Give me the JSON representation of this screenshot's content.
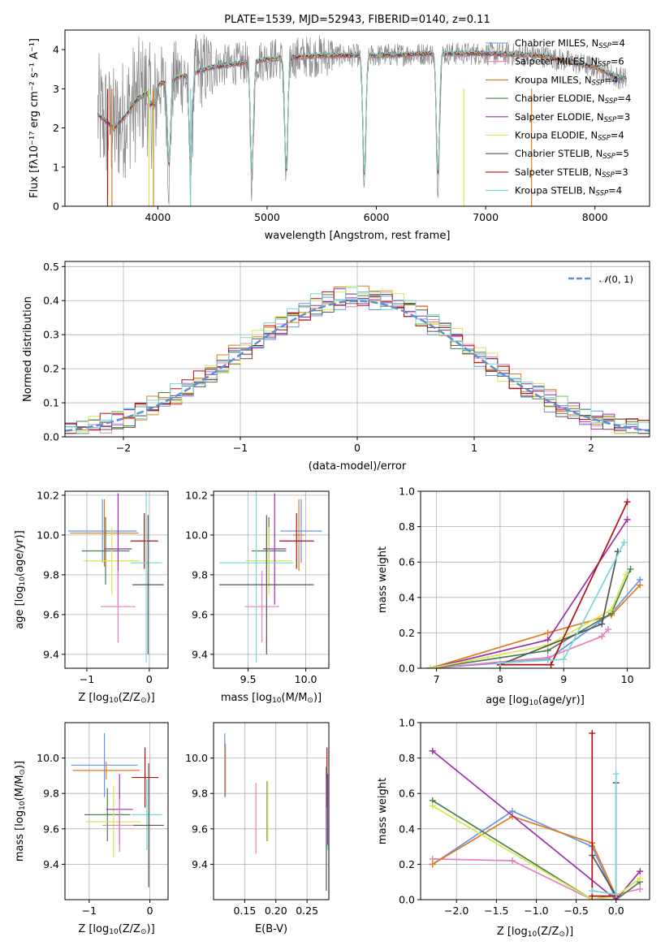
{
  "colors": {
    "Chabrier MILES": "#6495ed",
    "Salpeter MILES": "#e87fbd",
    "Kroupa MILES": "#e07b1a",
    "Chabrier ELODIE": "#4e7d4e",
    "Salpeter ELODIE": "#9b2fae",
    "Kroupa ELODIE": "#d4e84a",
    "Chabrier STELIB": "#555555",
    "Salpeter STELIB": "#b30f0f",
    "Kroupa STELIB": "#78d7d7",
    "data": "#888888",
    "normal": "#5b8fd6"
  },
  "chart_data": [
    {
      "id": "spectrum",
      "type": "line",
      "title": "PLATE=1539, MJD=52943, FIBERID=0140, z=0.11",
      "xlabel": "wavelength [Angstrom, rest frame]",
      "ylabel": "Flux [f$_\\lambda$10$^{-17}$ erg cm$^{-2}$ s$^{-1}$ A$^{-1}$]",
      "ylabel_display": "Flux [fλ10⁻¹⁷ erg cm⁻² s⁻¹ A⁻¹]",
      "xlim": [
        3150,
        8500
      ],
      "ylim": [
        0,
        4.5
      ],
      "xticks": [
        4000,
        5000,
        6000,
        7000,
        8000
      ],
      "yticks": [
        0,
        1,
        2,
        3,
        4
      ],
      "legend_loc": "upper right",
      "legend": [
        "Chabrier MILES, N_SSP=4",
        "Salpeter MILES, N_SSP=6",
        "Kroupa MILES, N_SSP=4",
        "Chabrier ELODIE, N_SSP=4",
        "Salpeter ELODIE, N_SSP=3",
        "Kroupa ELODIE, N_SSP=4",
        "Chabrier STELIB, N_SSP=5",
        "Salpeter STELIB, N_SSP=3",
        "Kroupa STELIB, N_SSP=4"
      ],
      "legend_parts": [
        [
          "Chabrier MILES, N",
          "SSP",
          "=4"
        ],
        [
          "Salpeter MILES, N",
          "SSP",
          "=6"
        ],
        [
          "Kroupa MILES, N",
          "SSP",
          "=4"
        ],
        [
          "Chabrier ELODIE, N",
          "SSP",
          "=4"
        ],
        [
          "Salpeter ELODIE, N",
          "SSP",
          "=3"
        ],
        [
          "Kroupa ELODIE, N",
          "SSP",
          "=4"
        ],
        [
          "Chabrier STELIB, N",
          "SSP",
          "=5"
        ],
        [
          "Salpeter STELIB, N",
          "SSP",
          "=3"
        ],
        [
          "Kroupa STELIB, N",
          "SSP",
          "=4"
        ]
      ],
      "continuum": {
        "x": [
          3450,
          3600,
          3700,
          3800,
          3900,
          4000,
          4200,
          4500,
          5000,
          5500,
          6000,
          6500,
          7000,
          7500,
          8000,
          8200,
          8290
        ],
        "y": [
          2.35,
          2.0,
          2.3,
          2.7,
          2.9,
          3.1,
          3.3,
          3.55,
          3.75,
          3.85,
          3.85,
          3.9,
          3.9,
          3.85,
          3.55,
          3.3,
          3.25
        ]
      },
      "model_range": [
        3450,
        8290
      ],
      "absorption": [
        [
          3934,
          0.4
        ],
        [
          3969,
          0.5
        ],
        [
          4102,
          2.4
        ],
        [
          4300,
          2.5
        ],
        [
          4861,
          3.1
        ],
        [
          5175,
          3.2
        ],
        [
          5890,
          3.4
        ],
        [
          6563,
          3.4
        ]
      ],
      "spikes": [
        {
          "x": 3540,
          "c": "Salpeter STELIB"
        },
        {
          "x": 3580,
          "c": "Kroupa MILES"
        },
        {
          "x": 3920,
          "c": "Kroupa ELODIE"
        },
        {
          "x": 3960,
          "c": "Kroupa MILES"
        },
        {
          "x": 4300,
          "c": "Kroupa STELIB"
        },
        {
          "x": 6800,
          "c": "Kroupa ELODIE"
        },
        {
          "x": 7420,
          "c": "Kroupa MILES"
        }
      ]
    },
    {
      "id": "residuals",
      "type": "histogram",
      "xlabel": "(data-model)/error",
      "ylabel": "Normed distribution",
      "xlim": [
        -2.5,
        2.5
      ],
      "ylim": [
        0,
        0.515
      ],
      "xticks": [
        -2,
        -1,
        0,
        1,
        2
      ],
      "xtick_labels": [
        "−2",
        "−1",
        "0",
        "1",
        "2"
      ],
      "yticks": [
        0,
        0.1,
        0.2,
        0.3,
        0.4,
        0.5
      ],
      "ytick_labels": [
        "0.0",
        "0.1",
        "0.2",
        "0.3",
        "0.4",
        "0.5"
      ],
      "bin_width": 0.1,
      "legend": [
        "𝒩(0, 1)"
      ],
      "legend_parts": [
        [
          "𝒩",
          "(0, 1)"
        ]
      ],
      "series": [
        {
          "name": "Chabrier MILES",
          "color": "Chabrier MILES",
          "jitter": 0.002
        },
        {
          "name": "Salpeter MILES",
          "color": "Salpeter MILES",
          "jitter": 0.021
        },
        {
          "name": "Kroupa MILES",
          "color": "Kroupa MILES",
          "jitter": 0.037
        },
        {
          "name": "Chabrier ELODIE",
          "color": "Chabrier ELODIE",
          "jitter": 0.053
        },
        {
          "name": "Salpeter ELODIE",
          "color": "Salpeter ELODIE",
          "jitter": 0.071
        },
        {
          "name": "Kroupa ELODIE",
          "color": "Kroupa ELODIE",
          "jitter": 0.089
        },
        {
          "name": "Chabrier STELIB",
          "color": "Chabrier STELIB",
          "jitter": 0.103
        },
        {
          "name": "Salpeter STELIB",
          "color": "Salpeter STELIB",
          "jitter": 0.127
        },
        {
          "name": "Kroupa STELIB",
          "color": "Kroupa STELIB",
          "jitter": 0.149
        }
      ]
    },
    {
      "id": "age_vs_Z",
      "type": "errorbar",
      "xlabel": "Z [log$_{10}$($Z/Z_\\odot$)]",
      "ylabel": "age  [log$_{10}$($age/yr$)]",
      "xlabel_parts": [
        "Z [log",
        "10",
        "(Z/Z",
        "⊙",
        ")]"
      ],
      "ylabel_parts": [
        "age  [log",
        "10",
        "(age/yr)]"
      ],
      "xlim": [
        -1.35,
        0.3
      ],
      "ylim": [
        9.33,
        10.22
      ],
      "xticks": [
        -1,
        0
      ],
      "xtick_labels": [
        "−1",
        "0"
      ],
      "yticks": [
        9.4,
        9.6,
        9.8,
        10.0,
        10.2
      ],
      "ytick_labels": [
        "9.4",
        "9.6",
        "9.8",
        "10.0",
        "10.2"
      ],
      "points": [
        {
          "c": "Chabrier MILES",
          "x": -0.75,
          "y": 10.02,
          "xerr": 0.55,
          "yerr": 0.16
        },
        {
          "c": "Kroupa MILES",
          "x": -0.72,
          "y": 10.01,
          "xerr": 0.55,
          "yerr": 0.17
        },
        {
          "c": "Chabrier ELODIE",
          "x": -0.7,
          "y": 9.92,
          "xerr": 0.38,
          "yerr": 0.17
        },
        {
          "c": "Kroupa ELODIE",
          "x": -0.6,
          "y": 9.87,
          "xerr": 0.45,
          "yerr": 0.17
        },
        {
          "c": "Salpeter ELODIE",
          "x": -0.5,
          "y": 9.93,
          "xerr": 0.22,
          "yerr": 0.28
        },
        {
          "c": "Salpeter MILES",
          "x": -0.5,
          "y": 9.64,
          "xerr": 0.28,
          "yerr": 0.18
        },
        {
          "c": "Salpeter STELIB",
          "x": -0.08,
          "y": 9.97,
          "xerr": 0.22,
          "yerr": 0.14
        },
        {
          "c": "Kroupa STELIB",
          "x": -0.05,
          "y": 9.86,
          "xerr": 0.25,
          "yerr": 0.5
        },
        {
          "c": "Chabrier STELIB",
          "x": -0.02,
          "y": 9.75,
          "xerr": 0.25,
          "yerr": 0.35
        }
      ]
    },
    {
      "id": "age_vs_mass",
      "type": "errorbar",
      "xlabel": "mass [log$_{10}$($M/M_\\odot$)]",
      "xlabel_parts": [
        "mass [log",
        "10",
        "(M/M",
        "⊙",
        ")]"
      ],
      "xlim": [
        9.2,
        10.2
      ],
      "ylim": [
        9.33,
        10.22
      ],
      "xticks": [
        9.5,
        10.0
      ],
      "xtick_labels": [
        "9.5",
        "10.0"
      ],
      "yticks": [
        9.4,
        9.6,
        9.8,
        10.0,
        10.2
      ],
      "ytick_labels": [
        "9.4",
        "9.6",
        "9.8",
        "10.0",
        "10.2"
      ],
      "points": [
        {
          "c": "Chabrier MILES",
          "x": 9.96,
          "y": 10.02,
          "xerr": 0.18,
          "yerr": 0.16
        },
        {
          "c": "Kroupa MILES",
          "x": 9.94,
          "y": 10.0,
          "xerr": 0.05,
          "yerr": 0.18
        },
        {
          "c": "Chabrier ELODIE",
          "x": 9.68,
          "y": 9.92,
          "xerr": 0.15,
          "yerr": 0.17
        },
        {
          "c": "Kroupa ELODIE",
          "x": 9.68,
          "y": 9.87,
          "xerr": 0.2,
          "yerr": 0.17
        },
        {
          "c": "Salpeter ELODIE",
          "x": 9.73,
          "y": 9.93,
          "xerr": 0.1,
          "yerr": 0.28
        },
        {
          "c": "Salpeter MILES",
          "x": 9.62,
          "y": 9.64,
          "xerr": 0.15,
          "yerr": 0.18
        },
        {
          "c": "Salpeter STELIB",
          "x": 9.92,
          "y": 9.97,
          "xerr": 0.15,
          "yerr": 0.14
        },
        {
          "c": "Kroupa STELIB",
          "x": 9.57,
          "y": 9.86,
          "xerr": 0.32,
          "yerr": 0.5
        },
        {
          "c": "Chabrier STELIB",
          "x": 9.66,
          "y": 9.75,
          "xerr": 0.41,
          "yerr": 0.35
        }
      ]
    },
    {
      "id": "weight_vs_age",
      "type": "line",
      "xlabel": "age  [log$_{10}$($age/yr$)]",
      "ylabel": "mass weight",
      "xlabel_parts": [
        "age  [log",
        "10",
        "(age/yr)]"
      ],
      "xlim": [
        6.75,
        10.35
      ],
      "ylim": [
        0,
        1.0
      ],
      "xticks": [
        7,
        8,
        9,
        10
      ],
      "xtick_labels": [
        "7",
        "8",
        "9",
        "10"
      ],
      "yticks": [
        0,
        0.2,
        0.4,
        0.6,
        0.8,
        1.0
      ],
      "ytick_labels": [
        "0.0",
        "0.2",
        "0.4",
        "0.6",
        "0.8",
        "1.0"
      ],
      "series": [
        {
          "c": "Chabrier MILES",
          "x": [
            6.9,
            8.75,
            9.75,
            10.2
          ],
          "y": [
            0.0,
            0.05,
            0.31,
            0.5
          ]
        },
        {
          "c": "Salpeter MILES",
          "x": [
            6.9,
            8.75,
            9.6,
            9.7
          ],
          "y": [
            0.0,
            0.06,
            0.18,
            0.22
          ]
        },
        {
          "c": "Kroupa MILES",
          "x": [
            6.9,
            8.75,
            9.75,
            10.2
          ],
          "y": [
            0.0,
            0.2,
            0.3,
            0.47
          ]
        },
        {
          "c": "Chabrier ELODIE",
          "x": [
            6.9,
            8.75,
            9.75,
            10.05
          ],
          "y": [
            0.0,
            0.1,
            0.31,
            0.56
          ]
        },
        {
          "c": "Salpeter ELODIE",
          "x": [
            6.9,
            8.75,
            10.0
          ],
          "y": [
            0.0,
            0.16,
            0.84
          ]
        },
        {
          "c": "Kroupa ELODIE",
          "x": [
            6.9,
            8.75,
            9.75,
            9.98
          ],
          "y": [
            0.0,
            0.13,
            0.33,
            0.53
          ]
        },
        {
          "c": "Chabrier STELIB",
          "x": [
            8.0,
            9.6,
            9.85
          ],
          "y": [
            0.02,
            0.25,
            0.66
          ]
        },
        {
          "c": "Salpeter STELIB",
          "x": [
            8.0,
            8.8,
            10.0
          ],
          "y": [
            0.02,
            0.02,
            0.94
          ]
        },
        {
          "c": "Kroupa STELIB",
          "x": [
            8.0,
            9.0,
            9.95
          ],
          "y": [
            0.03,
            0.05,
            0.71
          ]
        }
      ]
    },
    {
      "id": "mass_vs_Z",
      "type": "errorbar",
      "xlabel": "Z [log$_{10}$($Z/Z_\\odot$)]",
      "ylabel": "mass [log$_{10}$($M/M_\\odot$)]",
      "xlabel_parts": [
        "Z [log",
        "10",
        "(Z/Z",
        "⊙",
        ")]"
      ],
      "ylabel_parts": [
        "mass [log",
        "10",
        "(M/M",
        "⊙",
        ")]"
      ],
      "xlim": [
        -1.4,
        0.3
      ],
      "ylim": [
        9.2,
        10.2
      ],
      "xticks": [
        -1,
        0
      ],
      "xtick_labels": [
        "−1",
        "0"
      ],
      "yticks": [
        9.4,
        9.6,
        9.8,
        10.0
      ],
      "ytick_labels": [
        "9.4",
        "9.6",
        "9.8",
        "10.0"
      ],
      "points": [
        {
          "c": "Chabrier MILES",
          "x": -0.75,
          "y": 9.96,
          "xerr": 0.55,
          "yerr": 0.18
        },
        {
          "c": "Kroupa MILES",
          "x": -0.72,
          "y": 9.93,
          "xerr": 0.55,
          "yerr": 0.05
        },
        {
          "c": "Chabrier ELODIE",
          "x": -0.7,
          "y": 9.68,
          "xerr": 0.38,
          "yerr": 0.15
        },
        {
          "c": "Kroupa ELODIE",
          "x": -0.6,
          "y": 9.64,
          "xerr": 0.45,
          "yerr": 0.2
        },
        {
          "c": "Salpeter ELODIE",
          "x": -0.5,
          "y": 9.71,
          "xerr": 0.22,
          "yerr": 0.2
        },
        {
          "c": "Salpeter MILES",
          "x": -0.5,
          "y": 9.62,
          "xerr": 0.28,
          "yerr": 0.15
        },
        {
          "c": "Salpeter STELIB",
          "x": -0.08,
          "y": 9.89,
          "xerr": 0.22,
          "yerr": 0.17
        },
        {
          "c": "Kroupa STELIB",
          "x": -0.05,
          "y": 9.68,
          "xerr": 0.25,
          "yerr": 0.2
        },
        {
          "c": "Chabrier STELIB",
          "x": -0.02,
          "y": 9.62,
          "xerr": 0.25,
          "yerr": 0.35
        }
      ]
    },
    {
      "id": "mass_vs_EBV",
      "type": "errorbar",
      "xlabel": "E(B-V)",
      "xlim": [
        0.1,
        0.285
      ],
      "ylim": [
        9.2,
        10.2
      ],
      "xticks": [
        0.15,
        0.2,
        0.25
      ],
      "xtick_labels": [
        "0.15",
        "0.20",
        "0.25"
      ],
      "yticks": [
        9.4,
        9.6,
        9.8,
        10.0
      ],
      "ytick_labels": [
        "9.4",
        "9.6",
        "9.8",
        "10.0"
      ],
      "points": [
        {
          "c": "Chabrier MILES",
          "x": 0.118,
          "y": 9.96,
          "yerr": 0.18
        },
        {
          "c": "Kroupa MILES",
          "x": 0.119,
          "y": 9.93,
          "yerr": 0.15
        },
        {
          "c": "Salpeter MILES",
          "x": 0.168,
          "y": 9.66,
          "yerr": 0.2
        },
        {
          "c": "Chabrier ELODIE",
          "x": 0.186,
          "y": 9.7,
          "yerr": 0.17
        },
        {
          "c": "Kroupa ELODIE",
          "x": 0.187,
          "y": 9.7,
          "yerr": 0.17
        },
        {
          "c": "Salpeter STELIB",
          "x": 0.282,
          "y": 9.89,
          "yerr": 0.17
        },
        {
          "c": "Kroupa STELIB",
          "x": 0.283,
          "y": 9.68,
          "yerr": 0.2
        },
        {
          "c": "Chabrier STELIB",
          "x": 0.281,
          "y": 9.6,
          "yerr": 0.35
        },
        {
          "c": "Salpeter ELODIE",
          "x": 0.283,
          "y": 9.71,
          "yerr": 0.2
        }
      ]
    },
    {
      "id": "weight_vs_Z",
      "type": "line",
      "xlabel": "Z [log$_{10}$($Z/Z_\\odot$)]",
      "ylabel": "mass weight",
      "xlabel_parts": [
        "Z [log",
        "10",
        "(Z/Z",
        "⊙",
        ")]"
      ],
      "xlim": [
        -2.45,
        0.42
      ],
      "ylim": [
        0,
        1.0
      ],
      "xticks": [
        -2.0,
        -1.5,
        -1.0,
        -0.5,
        0.0
      ],
      "xtick_labels": [
        "−2.0",
        "−1.5",
        "−1.0",
        "−0.5",
        "0.0"
      ],
      "yticks": [
        0,
        0.2,
        0.4,
        0.6,
        0.8,
        1.0
      ],
      "ytick_labels": [
        "0.0",
        "0.2",
        "0.4",
        "0.6",
        "0.8",
        "1.0"
      ],
      "series": [
        {
          "c": "Chabrier MILES",
          "x": [
            -2.3,
            -1.3,
            -0.3,
            0.0
          ],
          "y": [
            0.2,
            0.5,
            0.3,
            0.0
          ]
        },
        {
          "c": "Salpeter MILES",
          "x": [
            -2.3,
            -1.3,
            -0.3,
            0.3
          ],
          "y": [
            0.23,
            0.22,
            0.0,
            0.06
          ]
        },
        {
          "c": "Kroupa MILES",
          "x": [
            -2.3,
            -1.3,
            -0.3,
            0.0
          ],
          "y": [
            0.2,
            0.47,
            0.32,
            0.02
          ]
        },
        {
          "c": "Chabrier ELODIE",
          "x": [
            -2.3,
            -0.3,
            0.0,
            0.3
          ],
          "y": [
            0.56,
            0.0,
            0.0,
            0.1
          ]
        },
        {
          "c": "Salpeter ELODIE",
          "x": [
            -2.3,
            0.0,
            0.3
          ],
          "y": [
            0.84,
            0.0,
            0.16
          ]
        },
        {
          "c": "Kroupa ELODIE",
          "x": [
            -2.3,
            -0.3,
            0.0,
            0.3
          ],
          "y": [
            0.53,
            0.0,
            0.02,
            0.12
          ]
        },
        {
          "c": "Chabrier STELIB",
          "x": [
            -0.3,
            0.0,
            0.0
          ],
          "y": [
            0.25,
            0.02,
            0.66
          ]
        },
        {
          "c": "Salpeter STELIB",
          "x": [
            -0.3,
            -0.3,
            0.0
          ],
          "y": [
            0.94,
            0.02,
            0.02
          ]
        },
        {
          "c": "Kroupa STELIB",
          "x": [
            -0.3,
            0.0,
            0.0
          ],
          "y": [
            0.05,
            0.03,
            0.71
          ]
        }
      ]
    }
  ]
}
